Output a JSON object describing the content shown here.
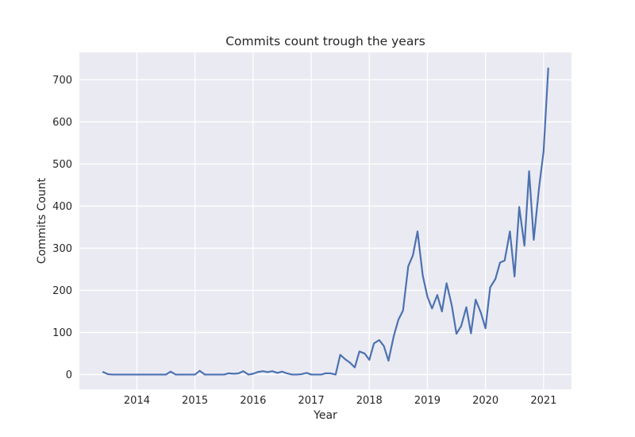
{
  "chart_data": {
    "type": "line",
    "title": "Commits count trough the years",
    "xlabel": "Year",
    "ylabel": "Commits Count",
    "xlim": [
      2013.01,
      2021.48
    ],
    "ylim": [
      -35,
      765
    ],
    "xticks": [
      2014,
      2015,
      2016,
      2017,
      2018,
      2019,
      2020,
      2021
    ],
    "xtick_labels": [
      "2014",
      "2015",
      "2016",
      "2017",
      "2018",
      "2019",
      "2020",
      "2021"
    ],
    "yticks": [
      0,
      100,
      200,
      300,
      400,
      500,
      600,
      700
    ],
    "ytick_labels": [
      "0",
      "100",
      "200",
      "300",
      "400",
      "500",
      "600",
      "700"
    ],
    "grid": true,
    "colors": {
      "line": "#4c72b0",
      "plot_bg": "#eaeaf2",
      "grid": "#ffffff"
    },
    "series": [
      {
        "x": [
          2013.42,
          2013.5,
          2013.58,
          2013.67,
          2013.75,
          2013.83,
          2013.92,
          2014.0,
          2014.08,
          2014.17,
          2014.25,
          2014.33,
          2014.42,
          2014.5,
          2014.58,
          2014.67,
          2014.75,
          2014.83,
          2014.92,
          2015.0,
          2015.08,
          2015.17,
          2015.25,
          2015.33,
          2015.42,
          2015.5,
          2015.58,
          2015.67,
          2015.75,
          2015.83,
          2015.92,
          2016.0,
          2016.08,
          2016.17,
          2016.25,
          2016.33,
          2016.42,
          2016.5,
          2016.58,
          2016.67,
          2016.75,
          2016.83,
          2016.92,
          2017.0,
          2017.08,
          2017.17,
          2017.25,
          2017.33,
          2017.42,
          2017.5,
          2017.58,
          2017.67,
          2017.75,
          2017.83,
          2017.92,
          2018.0,
          2018.08,
          2018.17,
          2018.25,
          2018.33,
          2018.42,
          2018.5,
          2018.58,
          2018.67,
          2018.75,
          2018.83,
          2018.92,
          2019.0,
          2019.08,
          2019.17,
          2019.25,
          2019.33,
          2019.42,
          2019.5,
          2019.58,
          2019.67,
          2019.75,
          2019.83,
          2019.92,
          2020.0,
          2020.08,
          2020.17,
          2020.25,
          2020.33,
          2020.42,
          2020.5,
          2020.58,
          2020.67,
          2020.75,
          2020.83,
          2020.92,
          2021.0,
          2021.08
        ],
        "values": [
          6,
          1,
          0,
          0,
          0,
          0,
          0,
          0,
          0,
          0,
          0,
          0,
          0,
          0,
          7,
          0,
          0,
          0,
          0,
          0,
          9,
          0,
          0,
          0,
          0,
          0,
          3,
          2,
          3,
          8,
          0,
          2,
          6,
          8,
          6,
          8,
          4,
          7,
          3,
          0,
          0,
          1,
          4,
          0,
          0,
          0,
          3,
          3,
          0,
          47,
          37,
          28,
          17,
          55,
          50,
          35,
          74,
          82,
          68,
          33,
          91,
          130,
          152,
          257,
          283,
          340,
          235,
          185,
          157,
          189,
          150,
          217,
          164,
          97,
          115,
          160,
          98,
          178,
          147,
          110,
          207,
          227,
          266,
          271,
          340,
          233,
          398,
          306,
          483,
          320,
          442,
          531,
          727
        ]
      }
    ]
  }
}
